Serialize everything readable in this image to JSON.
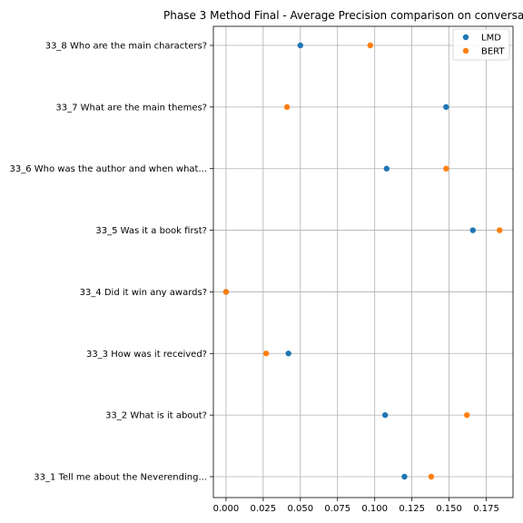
{
  "chart_data": {
    "type": "scatter",
    "title": "Phase 3 Method Final - Average Precision comparison on conversa",
    "xlabel": "",
    "ylabel": "",
    "xlim": [
      -0.0085,
      0.193
    ],
    "x_ticks": [
      "0.000",
      "0.025",
      "0.050",
      "0.075",
      "0.100",
      "0.125",
      "0.150",
      "0.175"
    ],
    "x_tick_values": [
      0,
      0.025,
      0.05,
      0.075,
      0.1,
      0.125,
      0.15,
      0.175
    ],
    "grid": true,
    "legend_position": "top-right",
    "categories": [
      "33_1 Tell me about the Neverending...",
      "33_2 What is it about?",
      "33_3 How was it received?",
      "33_4 Did it win any awards?",
      "33_5 Was it a book first?",
      "33_6 Who was the author and when what...",
      "33_7 What are the main themes?",
      "33_8 Who are the main characters?"
    ],
    "series": [
      {
        "name": "LMD",
        "color": "#1f77b4",
        "values": [
          0.12,
          0.107,
          0.042,
          0.0,
          0.166,
          0.108,
          0.148,
          0.05
        ]
      },
      {
        "name": "BERT",
        "color": "#ff7f0e",
        "values": [
          0.138,
          0.162,
          0.027,
          0.0,
          0.184,
          0.148,
          0.041,
          0.097
        ]
      }
    ]
  }
}
